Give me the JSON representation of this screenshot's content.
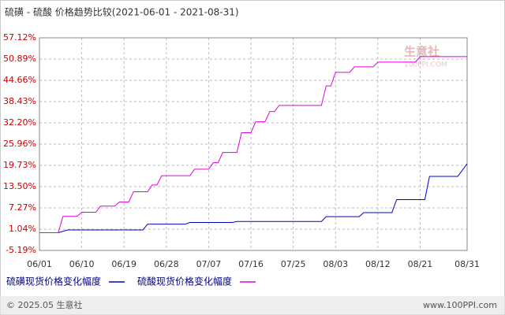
{
  "chart_data": {
    "type": "line",
    "title": "硫磺 - 硫酸 价格趋势比较(2021-06-01 - 2021-08-31)",
    "xlim": [
      "06/01",
      "08/31"
    ],
    "xticks": [
      "06/01",
      "06/10",
      "06/19",
      "06/28",
      "07/07",
      "07/16",
      "07/25",
      "08/03",
      "08/12",
      "08/21",
      "08/31"
    ],
    "ylim": [
      -5.19,
      57.12
    ],
    "yticks": [
      {
        "value": -5.19,
        "label": "-5.19%"
      },
      {
        "value": 1.04,
        "label": "1.04%"
      },
      {
        "value": 7.27,
        "label": "7.27%"
      },
      {
        "value": 13.5,
        "label": "13.50%"
      },
      {
        "value": 19.73,
        "label": "19.73%"
      },
      {
        "value": 25.96,
        "label": "25.96%"
      },
      {
        "value": 32.2,
        "label": "32.20%"
      },
      {
        "value": 38.43,
        "label": "38.43%"
      },
      {
        "value": 44.66,
        "label": "44.66%"
      },
      {
        "value": 50.89,
        "label": "50.89%"
      },
      {
        "value": 57.12,
        "label": "57.12%"
      }
    ],
    "grid": true,
    "series": [
      {
        "name": "硫磺现货价格变化幅度",
        "color": "#0000cc",
        "x": [
          "06/01",
          "06/05",
          "06/07",
          "06/23",
          "06/24",
          "07/02",
          "07/03",
          "07/12",
          "07/13",
          "07/31",
          "08/01",
          "08/08",
          "08/09",
          "08/15",
          "08/16",
          "08/22",
          "08/23",
          "08/29",
          "08/31"
        ],
        "values": [
          0,
          0,
          0.8,
          0.8,
          2.5,
          2.5,
          3.0,
          3.0,
          3.3,
          3.3,
          4.7,
          4.7,
          5.9,
          5.9,
          9.7,
          9.7,
          16.5,
          16.5,
          20.2
        ]
      },
      {
        "name": "硫酸现货价格变化幅度",
        "color": "#e000e0",
        "x": [
          "06/01",
          "06/05",
          "06/06",
          "06/09",
          "06/10",
          "06/13",
          "06/14",
          "06/17",
          "06/18",
          "06/20",
          "06/21",
          "06/24",
          "06/25",
          "06/26",
          "06/27",
          "07/03",
          "07/04",
          "07/07",
          "07/08",
          "07/09",
          "07/10",
          "07/13",
          "07/14",
          "07/16",
          "07/17",
          "07/19",
          "07/20",
          "07/21",
          "07/22",
          "07/31",
          "08/01",
          "08/02",
          "08/03",
          "08/06",
          "08/07",
          "08/11",
          "08/12",
          "08/20",
          "08/21",
          "08/31"
        ],
        "values": [
          0,
          0,
          4.8,
          4.8,
          6.0,
          6.0,
          7.8,
          7.8,
          9.0,
          9.0,
          12.0,
          12.0,
          14.0,
          14.0,
          16.7,
          16.7,
          18.6,
          18.6,
          20.5,
          20.5,
          23.5,
          23.5,
          29.3,
          29.3,
          32.5,
          32.5,
          35.5,
          35.5,
          37.3,
          37.3,
          43.0,
          43.0,
          47.0,
          47.0,
          48.6,
          48.6,
          50.0,
          50.0,
          51.6,
          51.6
        ]
      }
    ],
    "watermark": "生意社",
    "watermark_sub": "100PPI.COM",
    "footer_left": "© 2025.05 生意社",
    "footer_right": "www.100PPI.com"
  }
}
